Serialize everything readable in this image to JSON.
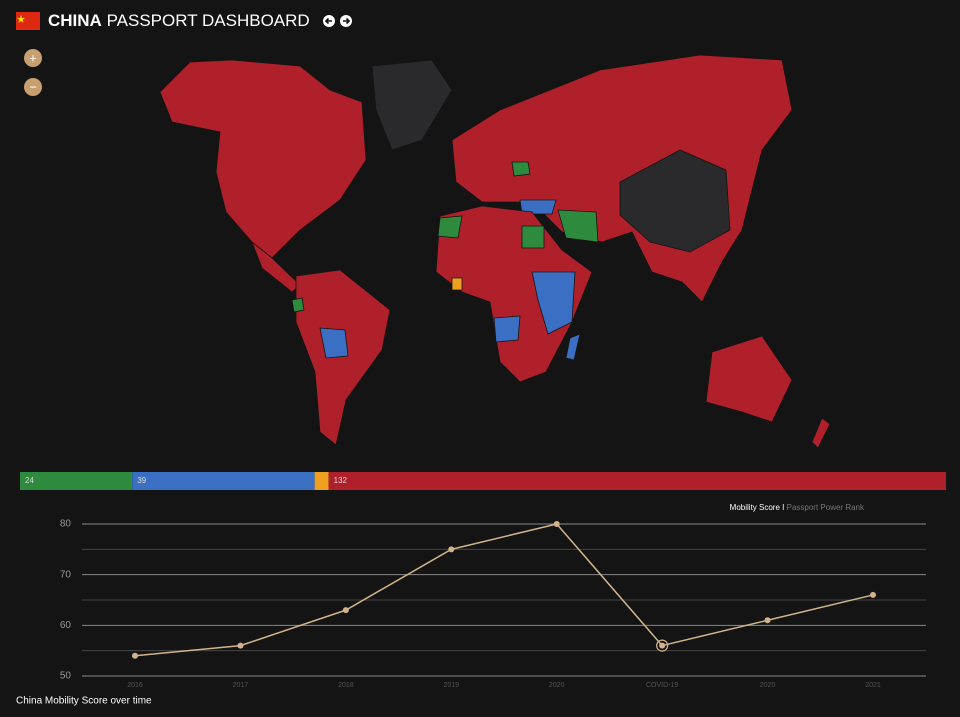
{
  "header": {
    "title_bold": "CHINA",
    "title_rest": "PASSPORT DASHBOARD"
  },
  "map_controls": {
    "zoom_in": "+",
    "zoom_out": "−"
  },
  "chart_data": [
    {
      "type": "stacked_bar",
      "values": [
        24,
        39,
        3,
        132
      ],
      "value_labels": [
        "24",
        "39",
        null,
        "132"
      ],
      "colors": [
        "#2e8b3e",
        "#3a6fc4",
        "#f0a020",
        "#b0202a"
      ]
    },
    {
      "type": "line",
      "title": "China Mobility Score over time",
      "legend": {
        "primary": "Mobility Score",
        "separator": "I",
        "secondary": "Passport Power Rank"
      },
      "categories": [
        "2016",
        "2017",
        "2018",
        "2019",
        "2020",
        "COVID-19",
        "2020",
        "2021"
      ],
      "values": [
        54,
        56,
        63,
        75,
        80,
        56,
        61,
        66
      ],
      "color": "#d2b48c",
      "highlight_index": 5,
      "ylim": [
        50,
        80
      ],
      "yticks": [
        50,
        60,
        70,
        80
      ],
      "minor_yticks": [
        55,
        65,
        75
      ],
      "grid": true
    }
  ]
}
